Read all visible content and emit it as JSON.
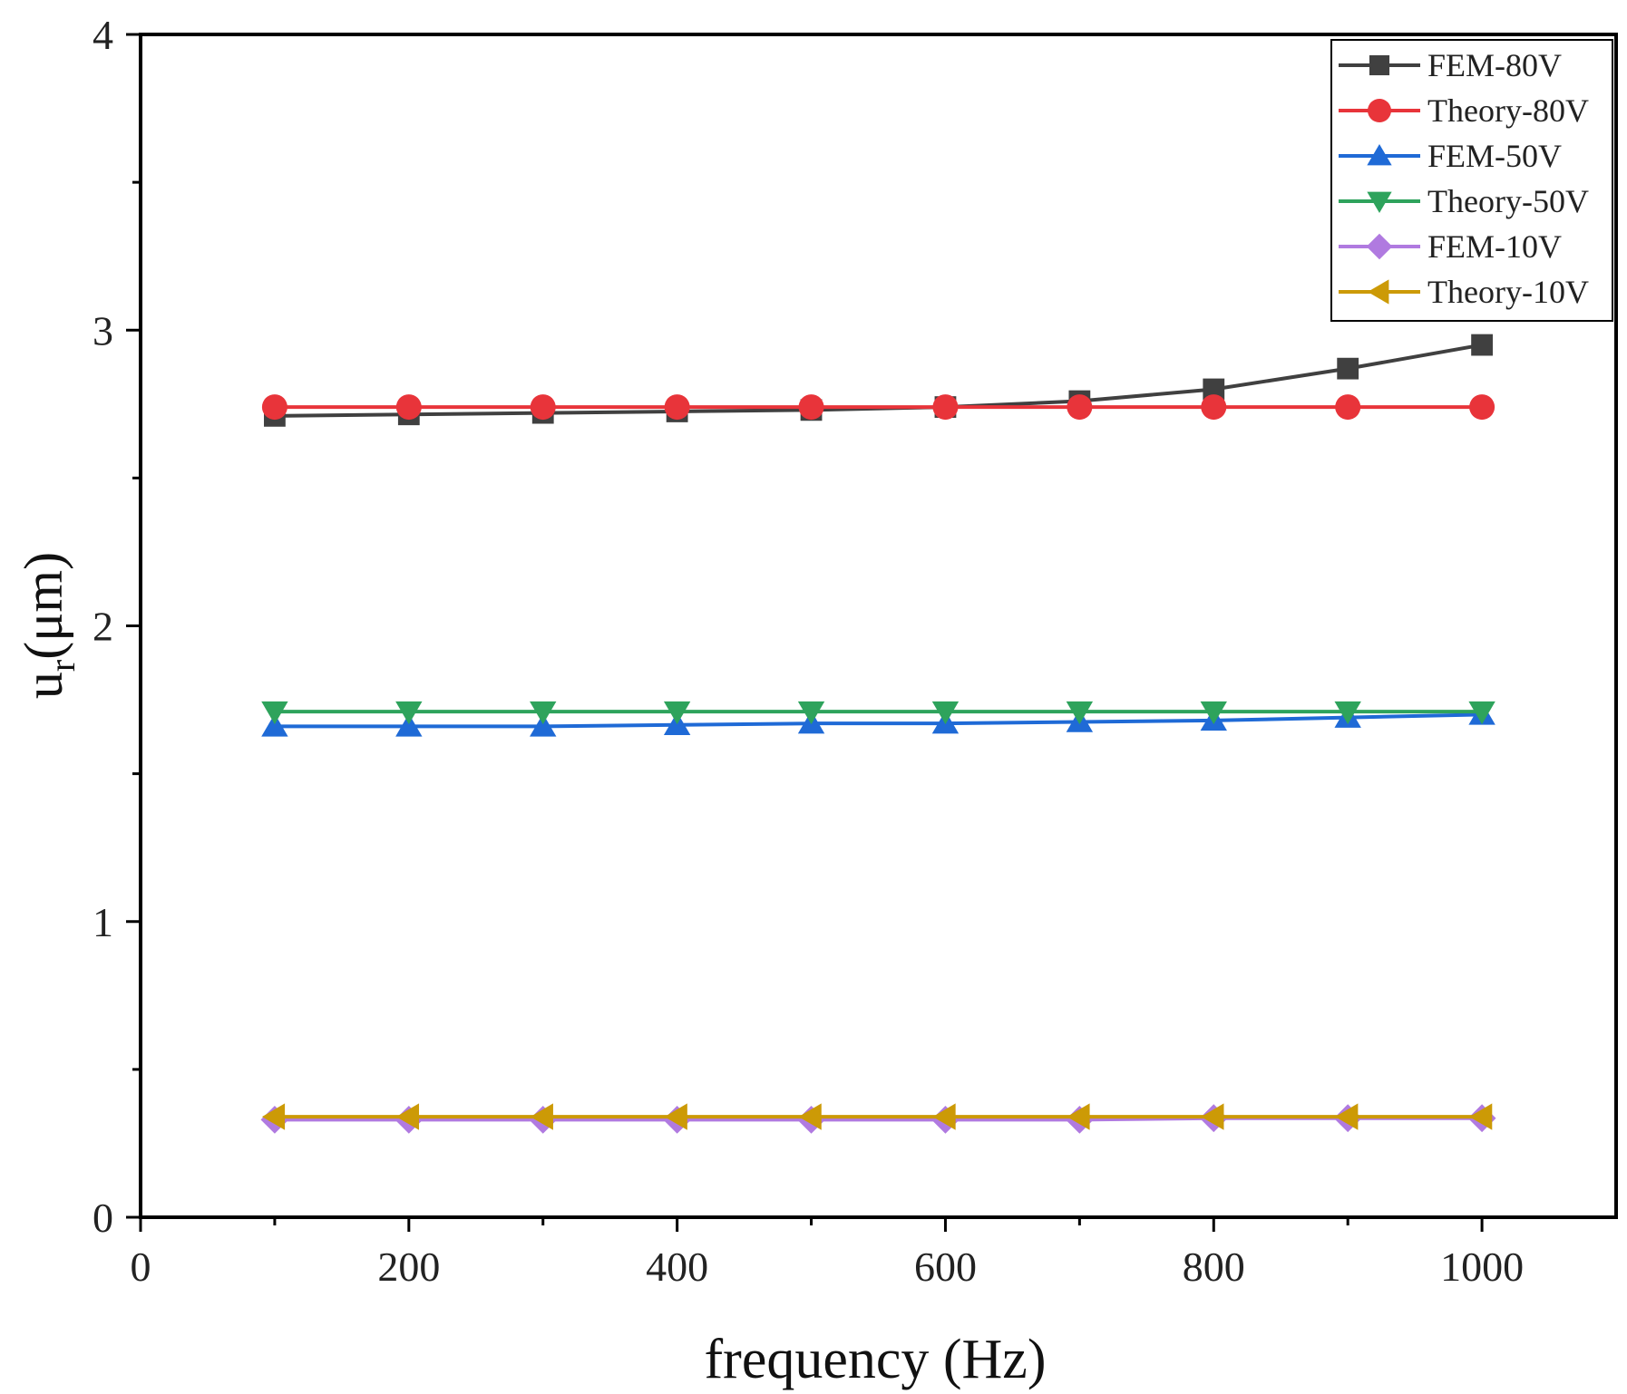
{
  "chart_data": {
    "type": "line",
    "title": "",
    "xlabel": "frequency (Hz)",
    "ylabel": {
      "base": "u",
      "subscript": "r",
      "unit": "(μm)"
    },
    "xlim": [
      0,
      1100
    ],
    "ylim": [
      0,
      4
    ],
    "xticks": [
      0,
      200,
      400,
      600,
      800,
      1000
    ],
    "xminor": [
      100,
      300,
      500,
      700,
      900
    ],
    "yticks": [
      0,
      1,
      2,
      3,
      4
    ],
    "yminor": [
      0.5,
      1.5,
      2.5,
      3.5
    ],
    "grid": false,
    "legend_position": "top-right",
    "x": [
      100,
      200,
      300,
      400,
      500,
      600,
      700,
      800,
      900,
      1000
    ],
    "series": [
      {
        "name": "FEM-80V",
        "color": "#404040",
        "marker": "square",
        "values": [
          2.71,
          2.715,
          2.72,
          2.725,
          2.73,
          2.74,
          2.76,
          2.8,
          2.87,
          2.95
        ]
      },
      {
        "name": "Theory-80V",
        "color": "#e8343a",
        "marker": "circle",
        "values": [
          2.74,
          2.74,
          2.74,
          2.74,
          2.74,
          2.74,
          2.74,
          2.74,
          2.74,
          2.74
        ]
      },
      {
        "name": "FEM-50V",
        "color": "#1f6ad6",
        "marker": "triangle-up",
        "values": [
          1.66,
          1.66,
          1.66,
          1.665,
          1.67,
          1.67,
          1.675,
          1.68,
          1.69,
          1.7
        ]
      },
      {
        "name": "Theory-50V",
        "color": "#2ea35c",
        "marker": "triangle-down",
        "values": [
          1.71,
          1.71,
          1.71,
          1.71,
          1.71,
          1.71,
          1.71,
          1.71,
          1.71,
          1.71
        ]
      },
      {
        "name": "FEM-10V",
        "color": "#b07ae0",
        "marker": "diamond",
        "values": [
          0.33,
          0.33,
          0.33,
          0.33,
          0.33,
          0.33,
          0.33,
          0.335,
          0.335,
          0.335
        ]
      },
      {
        "name": "Theory-10V",
        "color": "#cc9a06",
        "marker": "triangle-left",
        "values": [
          0.34,
          0.34,
          0.34,
          0.34,
          0.34,
          0.34,
          0.34,
          0.34,
          0.34,
          0.34
        ]
      }
    ]
  }
}
